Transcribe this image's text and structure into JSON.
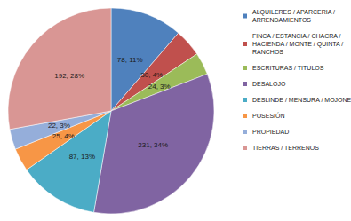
{
  "chart_data": {
    "type": "pie",
    "categories": [
      "ALQUILERES / APARCERIA / ARRENDAMIENTOS",
      "FINCA / ESTANCIA / CHACRA / HACIENDA / MONTE / QUINTA / RANCHOS",
      "ESCRITURAS / TITULOS",
      "DESALOJO",
      "DESLINDE / MENSURA / MOJONES",
      "POSESIÓN",
      "PROPIEDAD",
      "TIERRAS / TERRENOS"
    ],
    "values": [
      78,
      30,
      24,
      231,
      87,
      25,
      22,
      192
    ],
    "value_labels": [
      "78, 11%",
      "30, 4%",
      "24, 3%",
      "231, 34%",
      "87, 13%",
      "25, 4%",
      "22, 3%",
      "192, 28%"
    ],
    "colors": [
      "#4F81BD",
      "#C0504D",
      "#9BBB59",
      "#8064A2",
      "#4BACC6",
      "#F79646",
      "#95AEDA",
      "#D99694"
    ],
    "data_labels": true,
    "legend": "right"
  }
}
